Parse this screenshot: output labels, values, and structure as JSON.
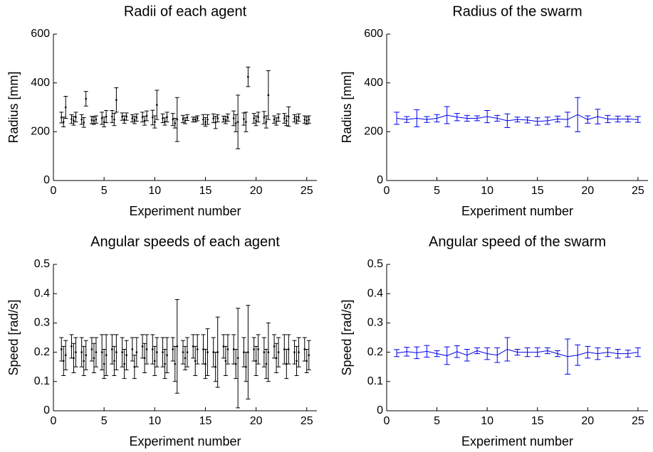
{
  "chart_data": [
    {
      "type": "errorbar",
      "title": "Radii of each agent",
      "xlabel": "Experiment number",
      "ylabel": "Radius [mm]",
      "xlim": [
        0,
        26
      ],
      "xticks": [
        0,
        5,
        10,
        15,
        20,
        25
      ],
      "ylim": [
        0,
        600
      ],
      "yticks": [
        0,
        200,
        400,
        600
      ],
      "connect": false,
      "x": [
        1,
        2,
        3,
        4,
        5,
        6,
        7,
        8,
        9,
        10,
        11,
        12,
        13,
        14,
        15,
        16,
        17,
        18,
        19,
        20,
        21,
        22,
        23,
        24,
        25
      ],
      "series": [
        {
          "color": "#000000",
          "values": [
            258,
            252,
            250,
            248,
            255,
            262,
            262,
            255,
            260,
            258,
            255,
            250,
            252,
            250,
            250,
            255,
            252,
            255,
            252,
            255,
            258,
            250,
            255,
            255,
            250
          ],
          "errors": [
            22,
            18,
            20,
            15,
            25,
            25,
            15,
            15,
            20,
            30,
            18,
            25,
            15,
            10,
            20,
            18,
            12,
            30,
            25,
            20,
            25,
            15,
            20,
            15,
            15
          ]
        },
        {
          "color": "#000000",
          "values": [
            240,
            245,
            238,
            245,
            240,
            250,
            250,
            248,
            245,
            240,
            242,
            235,
            245,
            250,
            240,
            238,
            248,
            235,
            240,
            245,
            240,
            242,
            245,
            248,
            245
          ],
          "errors": [
            20,
            18,
            20,
            15,
            20,
            25,
            15,
            15,
            18,
            25,
            15,
            20,
            12,
            10,
            18,
            25,
            15,
            35,
            40,
            20,
            25,
            15,
            20,
            15,
            15
          ]
        },
        {
          "color": "#000000",
          "values": [
            300,
            260,
            335,
            250,
            262,
            330,
            262,
            258,
            265,
            310,
            260,
            250,
            258,
            255,
            250,
            255,
            258,
            240,
            425,
            260,
            350,
            258,
            262,
            258,
            250
          ],
          "errors": [
            45,
            20,
            30,
            15,
            25,
            50,
            15,
            15,
            20,
            60,
            20,
            90,
            12,
            10,
            20,
            15,
            15,
            110,
            40,
            20,
            100,
            15,
            40,
            15,
            15
          ]
        }
      ]
    },
    {
      "type": "errorbar",
      "title": "Radius of the swarm",
      "xlabel": "Experiment number",
      "ylabel": "Radius [mm]",
      "xlim": [
        0,
        26
      ],
      "xticks": [
        0,
        5,
        10,
        15,
        20,
        25
      ],
      "ylim": [
        0,
        600
      ],
      "yticks": [
        0,
        200,
        400,
        600
      ],
      "connect": true,
      "x": [
        1,
        2,
        3,
        4,
        5,
        6,
        7,
        8,
        9,
        10,
        11,
        12,
        13,
        14,
        15,
        16,
        17,
        18,
        19,
        20,
        21,
        22,
        23,
        24,
        25
      ],
      "series": [
        {
          "color": "#0000ee",
          "values": [
            255,
            250,
            255,
            250,
            255,
            268,
            260,
            255,
            255,
            262,
            255,
            245,
            250,
            248,
            242,
            245,
            252,
            250,
            270,
            250,
            262,
            252,
            252,
            252,
            250
          ],
          "errors": [
            25,
            12,
            35,
            12,
            15,
            35,
            15,
            12,
            10,
            25,
            12,
            28,
            10,
            12,
            15,
            15,
            12,
            30,
            70,
            15,
            30,
            15,
            12,
            12,
            12
          ]
        }
      ]
    },
    {
      "type": "errorbar",
      "title": "Angular speeds of each agent",
      "xlabel": "Experiment number",
      "ylabel": "Speed [rad/s]",
      "xlim": [
        0,
        26
      ],
      "xticks": [
        0,
        5,
        10,
        15,
        20,
        25
      ],
      "ylim": [
        0,
        0.5
      ],
      "yticks": [
        0,
        0.1,
        0.2,
        0.3,
        0.4,
        0.5
      ],
      "connect": false,
      "x": [
        1,
        2,
        3,
        4,
        5,
        6,
        7,
        8,
        9,
        10,
        11,
        12,
        13,
        14,
        15,
        16,
        17,
        18,
        19,
        20,
        21,
        22,
        23,
        24,
        25
      ],
      "series": [
        {
          "color": "#000000",
          "values": [
            0.21,
            0.22,
            0.2,
            0.21,
            0.2,
            0.21,
            0.2,
            0.21,
            0.22,
            0.21,
            0.2,
            0.21,
            0.2,
            0.22,
            0.21,
            0.2,
            0.22,
            0.21,
            0.2,
            0.21,
            0.2,
            0.22,
            0.21,
            0.2,
            0.21
          ],
          "errors": [
            0.04,
            0.04,
            0.05,
            0.04,
            0.06,
            0.05,
            0.05,
            0.04,
            0.04,
            0.05,
            0.05,
            0.04,
            0.04,
            0.04,
            0.05,
            0.05,
            0.04,
            0.05,
            0.05,
            0.04,
            0.05,
            0.04,
            0.05,
            0.04,
            0.04
          ]
        },
        {
          "color": "#000000",
          "values": [
            0.17,
            0.18,
            0.17,
            0.18,
            0.16,
            0.17,
            0.16,
            0.15,
            0.18,
            0.17,
            0.16,
            0.16,
            0.18,
            0.17,
            0.16,
            0.15,
            0.17,
            0.16,
            0.15,
            0.17,
            0.16,
            0.18,
            0.16,
            0.17,
            0.17
          ],
          "errors": [
            0.05,
            0.05,
            0.05,
            0.05,
            0.05,
            0.05,
            0.05,
            0.04,
            0.05,
            0.05,
            0.05,
            0.06,
            0.04,
            0.05,
            0.05,
            0.05,
            0.05,
            0.05,
            0.05,
            0.05,
            0.05,
            0.05,
            0.05,
            0.05,
            0.04
          ]
        },
        {
          "color": "#000000",
          "values": [
            0.19,
            0.2,
            0.19,
            0.2,
            0.19,
            0.2,
            0.19,
            0.2,
            0.21,
            0.2,
            0.19,
            0.22,
            0.2,
            0.21,
            0.2,
            0.2,
            0.21,
            0.18,
            0.2,
            0.21,
            0.2,
            0.2,
            0.21,
            0.2,
            0.19
          ],
          "errors": [
            0.05,
            0.05,
            0.05,
            0.05,
            0.07,
            0.06,
            0.05,
            0.05,
            0.05,
            0.05,
            0.06,
            0.16,
            0.05,
            0.05,
            0.08,
            0.12,
            0.05,
            0.17,
            0.16,
            0.05,
            0.1,
            0.05,
            0.05,
            0.05,
            0.05
          ]
        }
      ]
    },
    {
      "type": "errorbar",
      "title": "Angular speed of the swarm",
      "xlabel": "Experiment number",
      "ylabel": "Speed [rad/s]",
      "xlim": [
        0,
        26
      ],
      "xticks": [
        0,
        5,
        10,
        15,
        20,
        25
      ],
      "ylim": [
        0,
        0.5
      ],
      "yticks": [
        0,
        0.1,
        0.2,
        0.3,
        0.4,
        0.5
      ],
      "connect": true,
      "x": [
        1,
        2,
        3,
        4,
        5,
        6,
        7,
        8,
        9,
        10,
        11,
        12,
        13,
        14,
        15,
        16,
        17,
        18,
        19,
        20,
        21,
        22,
        23,
        24,
        25
      ],
      "series": [
        {
          "color": "#0000ee",
          "values": [
            0.197,
            0.202,
            0.198,
            0.203,
            0.195,
            0.188,
            0.202,
            0.19,
            0.205,
            0.195,
            0.19,
            0.21,
            0.2,
            0.2,
            0.2,
            0.205,
            0.195,
            0.185,
            0.19,
            0.2,
            0.195,
            0.2,
            0.195,
            0.195,
            0.2
          ],
          "errors": [
            0.012,
            0.015,
            0.02,
            0.02,
            0.01,
            0.03,
            0.02,
            0.02,
            0.01,
            0.02,
            0.025,
            0.04,
            0.01,
            0.015,
            0.015,
            0.01,
            0.01,
            0.06,
            0.035,
            0.02,
            0.02,
            0.015,
            0.015,
            0.012,
            0.015
          ]
        }
      ]
    }
  ]
}
